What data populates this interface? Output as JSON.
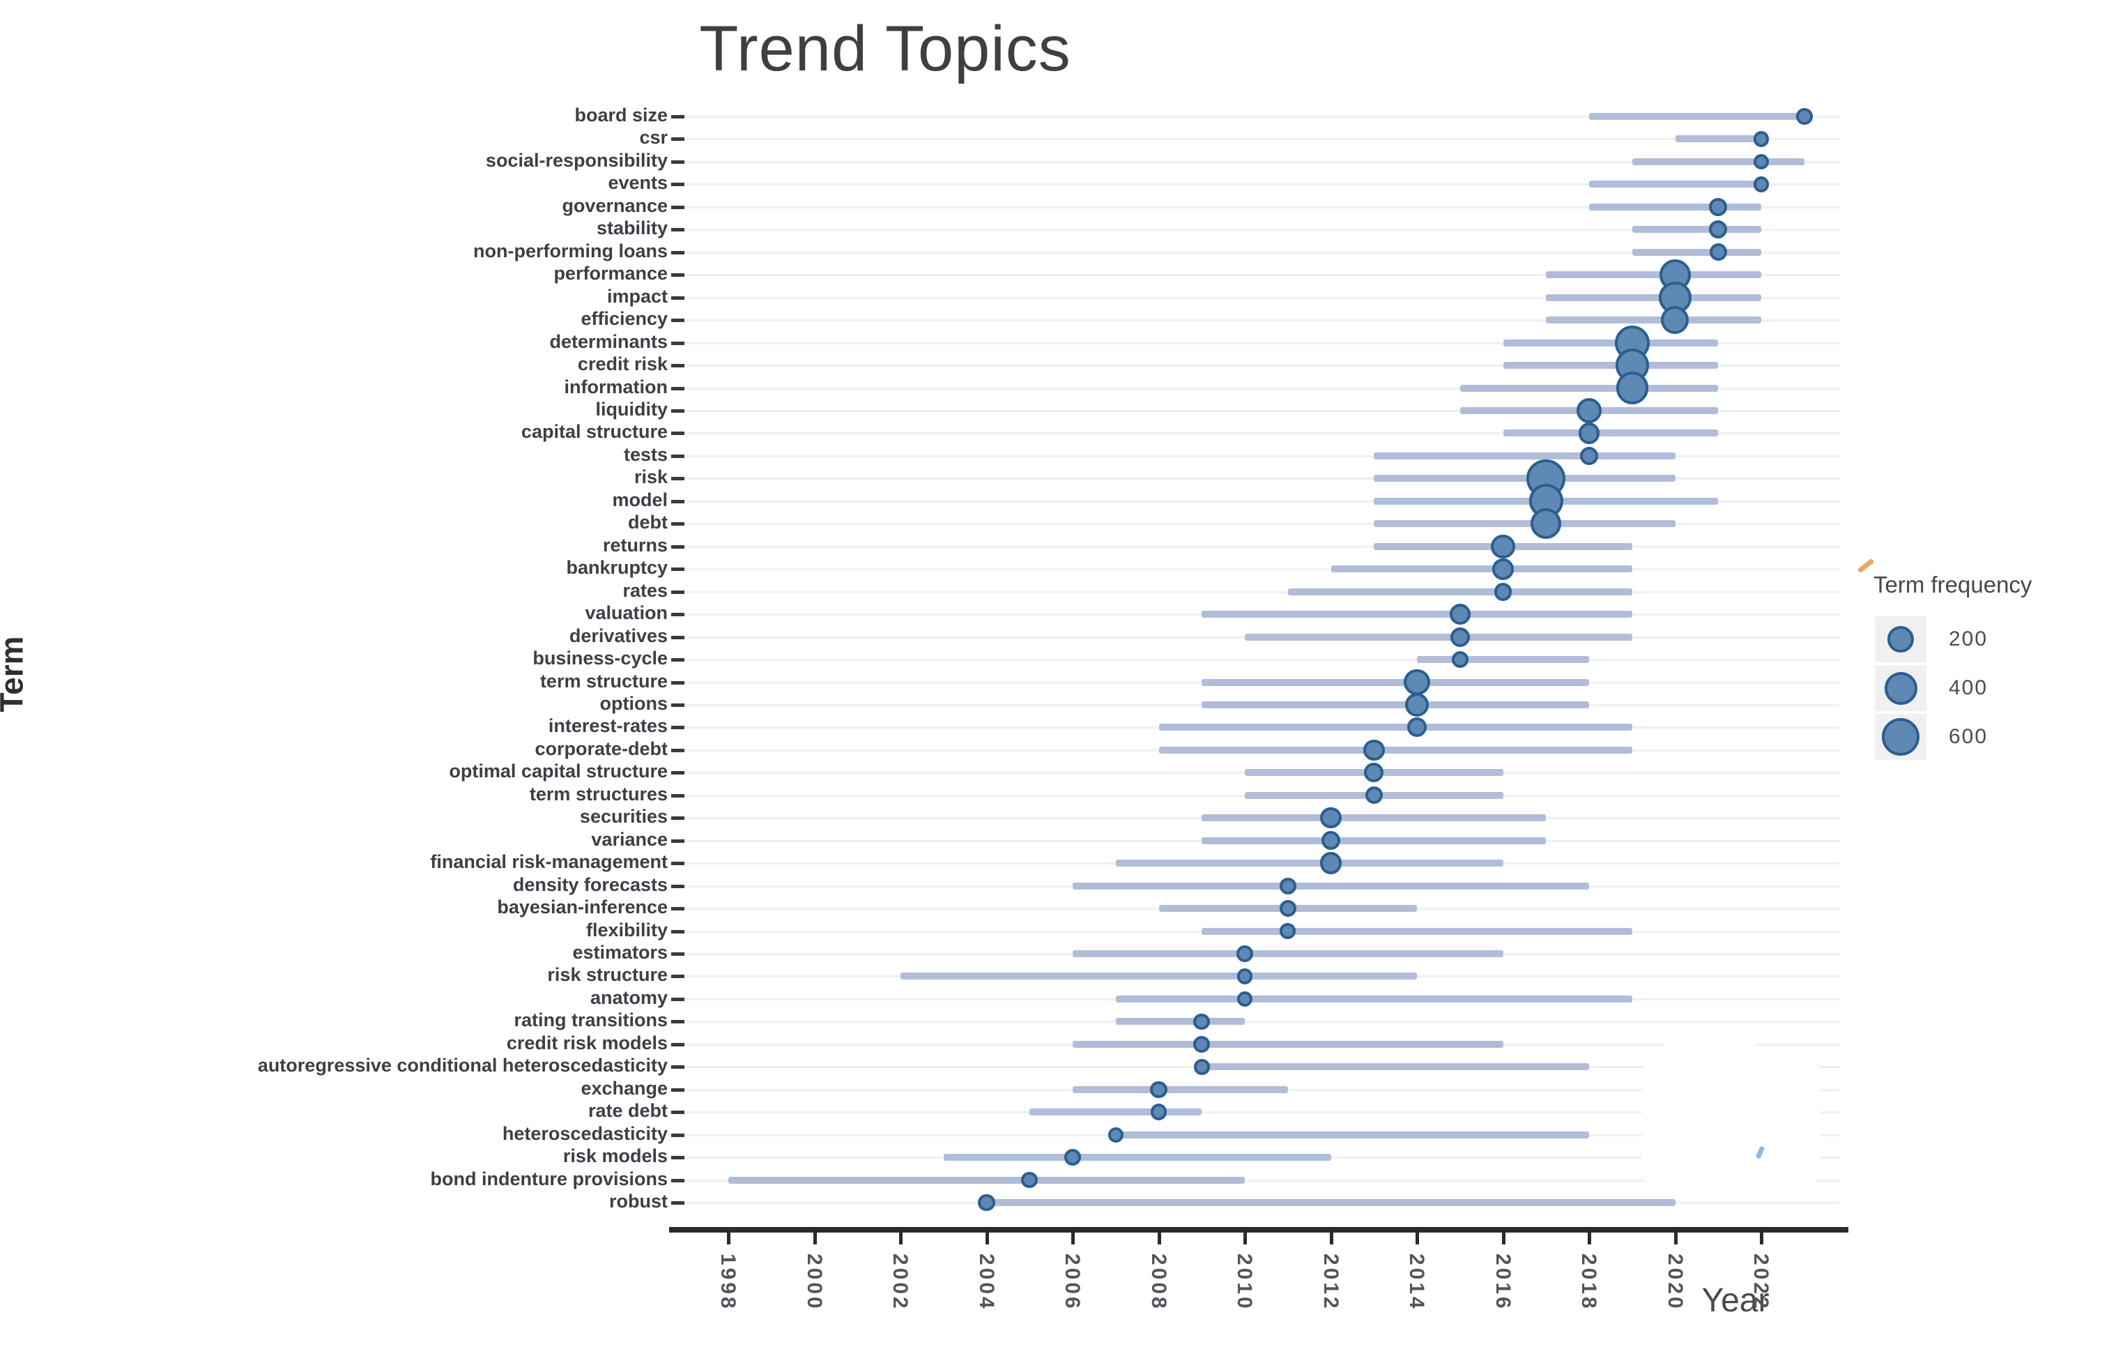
{
  "title": "Trend Topics",
  "colors": {
    "dot_fill": "#5e89b5",
    "dot_stroke": "#2c5e8f",
    "range_line": "#b0bcd8",
    "gridline": "#eef0f3",
    "axis_line": "#2b2b2b",
    "axis_text": "#53555c",
    "term_text": "#3d3f46",
    "legend_swatch_bg": "#f0f0f0"
  },
  "chart_data": {
    "type": "scatter",
    "subtype": "trend-topics-bubble-timeline",
    "title": "Trend Topics",
    "xlabel": "Year",
    "ylabel": "Term",
    "xlim": [
      1996.8,
      2023.9
    ],
    "x_ticks": [
      1998,
      2000,
      2002,
      2004,
      2006,
      2008,
      2010,
      2012,
      2014,
      2016,
      2018,
      2020,
      2022
    ],
    "grid": "horizontal-only",
    "legend": {
      "title": "Term frequency",
      "sizes": [
        200,
        400,
        600
      ],
      "position": "right"
    },
    "series": [
      {
        "term": "board size",
        "year_q1": 2018,
        "year_med": 2023,
        "year_q3": 2023,
        "freq": 25
      },
      {
        "term": "csr",
        "year_q1": 2020,
        "year_med": 2022,
        "year_q3": 2022,
        "freq": 20
      },
      {
        "term": "social-responsibility",
        "year_q1": 2019,
        "year_med": 2022,
        "year_q3": 2023,
        "freq": 15
      },
      {
        "term": "events",
        "year_q1": 2018,
        "year_med": 2022,
        "year_q3": 2022,
        "freq": 20
      },
      {
        "term": "governance",
        "year_q1": 2018,
        "year_med": 2021,
        "year_q3": 2022,
        "freq": 45
      },
      {
        "term": "stability",
        "year_q1": 2019,
        "year_med": 2021,
        "year_q3": 2022,
        "freq": 45
      },
      {
        "term": "non-performing loans",
        "year_q1": 2019,
        "year_med": 2021,
        "year_q3": 2022,
        "freq": 35
      },
      {
        "term": "performance",
        "year_q1": 2017,
        "year_med": 2020,
        "year_q3": 2022,
        "freq": 350
      },
      {
        "term": "impact",
        "year_q1": 2017,
        "year_med": 2020,
        "year_q3": 2022,
        "freq": 380
      },
      {
        "term": "efficiency",
        "year_q1": 2017,
        "year_med": 2020,
        "year_q3": 2022,
        "freq": 240
      },
      {
        "term": "determinants",
        "year_q1": 2016,
        "year_med": 2019,
        "year_q3": 2021,
        "freq": 480
      },
      {
        "term": "credit risk",
        "year_q1": 2016,
        "year_med": 2019,
        "year_q3": 2021,
        "freq": 420
      },
      {
        "term": "information",
        "year_q1": 2015,
        "year_med": 2019,
        "year_q3": 2021,
        "freq": 380
      },
      {
        "term": "liquidity",
        "year_q1": 2015,
        "year_med": 2018,
        "year_q3": 2021,
        "freq": 170
      },
      {
        "term": "capital structure",
        "year_q1": 2016,
        "year_med": 2018,
        "year_q3": 2021,
        "freq": 90
      },
      {
        "term": "tests",
        "year_q1": 2013,
        "year_med": 2018,
        "year_q3": 2020,
        "freq": 40
      },
      {
        "term": "risk",
        "year_q1": 2013,
        "year_med": 2017,
        "year_q3": 2020,
        "freq": 650
      },
      {
        "term": "model",
        "year_q1": 2013,
        "year_med": 2017,
        "year_q3": 2021,
        "freq": 450
      },
      {
        "term": "debt",
        "year_q1": 2013,
        "year_med": 2017,
        "year_q3": 2020,
        "freq": 330
      },
      {
        "term": "returns",
        "year_q1": 2013,
        "year_med": 2016,
        "year_q3": 2019,
        "freq": 140
      },
      {
        "term": "bankruptcy",
        "year_q1": 2012,
        "year_med": 2016,
        "year_q3": 2019,
        "freq": 90
      },
      {
        "term": "rates",
        "year_q1": 2011,
        "year_med": 2016,
        "year_q3": 2019,
        "freq": 40
      },
      {
        "term": "valuation",
        "year_q1": 2009,
        "year_med": 2015,
        "year_q3": 2019,
        "freq": 80
      },
      {
        "term": "derivatives",
        "year_q1": 2010,
        "year_med": 2015,
        "year_q3": 2019,
        "freq": 60
      },
      {
        "term": "business-cycle",
        "year_q1": 2014,
        "year_med": 2015,
        "year_q3": 2018,
        "freq": 30
      },
      {
        "term": "term structure",
        "year_q1": 2009,
        "year_med": 2014,
        "year_q3": 2018,
        "freq": 200
      },
      {
        "term": "options",
        "year_q1": 2009,
        "year_med": 2014,
        "year_q3": 2018,
        "freq": 140
      },
      {
        "term": "interest-rates",
        "year_q1": 2008,
        "year_med": 2014,
        "year_q3": 2019,
        "freq": 60
      },
      {
        "term": "corporate-debt",
        "year_q1": 2008,
        "year_med": 2013,
        "year_q3": 2019,
        "freq": 90
      },
      {
        "term": "optimal capital structure",
        "year_q1": 2010,
        "year_med": 2013,
        "year_q3": 2016,
        "freq": 60
      },
      {
        "term": "term structures",
        "year_q1": 2010,
        "year_med": 2013,
        "year_q3": 2016,
        "freq": 35
      },
      {
        "term": "securities",
        "year_q1": 2009,
        "year_med": 2012,
        "year_q3": 2017,
        "freq": 85
      },
      {
        "term": "variance",
        "year_q1": 2009,
        "year_med": 2012,
        "year_q3": 2017,
        "freq": 55
      },
      {
        "term": "financial risk-management",
        "year_q1": 2007,
        "year_med": 2012,
        "year_q3": 2016,
        "freq": 100
      },
      {
        "term": "density forecasts",
        "year_q1": 2006,
        "year_med": 2011,
        "year_q3": 2018,
        "freq": 25
      },
      {
        "term": "bayesian-inference",
        "year_q1": 2008,
        "year_med": 2011,
        "year_q3": 2014,
        "freq": 25
      },
      {
        "term": "flexibility",
        "year_q1": 2009,
        "year_med": 2011,
        "year_q3": 2019,
        "freq": 18
      },
      {
        "term": "estimators",
        "year_q1": 2006,
        "year_med": 2010,
        "year_q3": 2016,
        "freq": 25
      },
      {
        "term": "risk structure",
        "year_q1": 2002,
        "year_med": 2010,
        "year_q3": 2014,
        "freq": 18
      },
      {
        "term": "anatomy",
        "year_q1": 2007,
        "year_med": 2010,
        "year_q3": 2019,
        "freq": 18
      },
      {
        "term": "rating transitions",
        "year_q1": 2007,
        "year_med": 2009,
        "year_q3": 2010,
        "freq": 25
      },
      {
        "term": "credit risk models",
        "year_q1": 2006,
        "year_med": 2009,
        "year_q3": 2016,
        "freq": 25
      },
      {
        "term": "autoregressive conditional heteroscedasticity",
        "year_q1": 2009,
        "year_med": 2009,
        "year_q3": 2018,
        "freq": 18
      },
      {
        "term": "exchange",
        "year_q1": 2006,
        "year_med": 2008,
        "year_q3": 2011,
        "freq": 30
      },
      {
        "term": "rate debt",
        "year_q1": 2005,
        "year_med": 2008,
        "year_q3": 2009,
        "freq": 25
      },
      {
        "term": "heteroscedasticity",
        "year_q1": 2007,
        "year_med": 2007,
        "year_q3": 2018,
        "freq": 15
      },
      {
        "term": "risk models",
        "year_q1": 2003,
        "year_med": 2006,
        "year_q3": 2012,
        "freq": 30
      },
      {
        "term": "bond indenture provisions",
        "year_q1": 1998,
        "year_med": 2005,
        "year_q3": 2010,
        "freq": 25
      },
      {
        "term": "robust",
        "year_q1": 2004,
        "year_med": 2004,
        "year_q3": 2020,
        "freq": 30
      }
    ]
  }
}
